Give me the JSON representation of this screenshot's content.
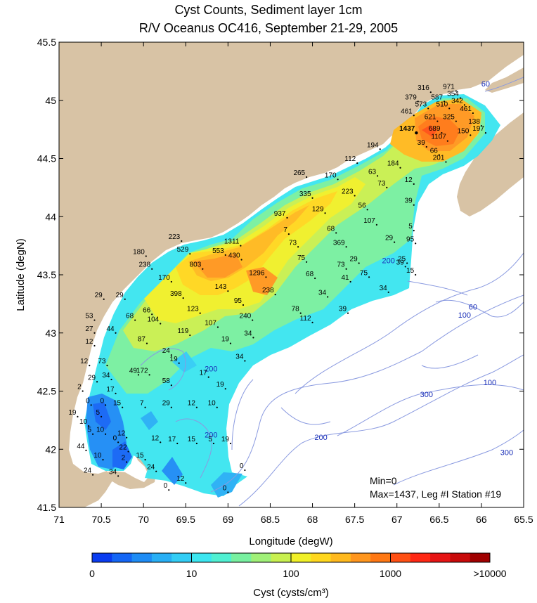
{
  "title": "Cyst Counts, Sediment layer 1cm",
  "subtitle": "R/V Oceanus OC416, September 21-29, 2005",
  "map": {
    "xlabel": "Longitude (degW)",
    "ylabel": "Latitude (degN)",
    "lon_ticks": [
      "71",
      "70.5",
      "70",
      "69.5",
      "69",
      "68.5",
      "68",
      "67.5",
      "67",
      "66.5",
      "66",
      "65.5"
    ],
    "lat_ticks": [
      "41.5",
      "42",
      "42.5",
      "43",
      "43.5",
      "44",
      "44.5",
      "45",
      "45.5"
    ],
    "lon_range": [
      -71,
      -65.5
    ],
    "lat_range": [
      41.5,
      45.5
    ],
    "land_color": "#d8c3a5",
    "water_color": "#ffffff",
    "contour_color": "#8a9ae0",
    "stats_min": "Min=0",
    "stats_max": "Max=1437, Leg #I Station #19",
    "depth_labels": [
      {
        "text": "60",
        "lon": -65.95,
        "lat": 45.12
      },
      {
        "text": "60",
        "lon": -66.1,
        "lat": 43.2
      },
      {
        "text": "100",
        "lon": -66.2,
        "lat": 43.13
      },
      {
        "text": "100",
        "lon": -65.9,
        "lat": 42.55
      },
      {
        "text": "300",
        "lon": -66.65,
        "lat": 42.45
      },
      {
        "text": "300",
        "lon": -65.7,
        "lat": 41.95
      },
      {
        "text": "200",
        "lon": -67.9,
        "lat": 42.08
      },
      {
        "text": "200",
        "lon": -69.2,
        "lat": 42.67
      },
      {
        "text": "200",
        "lon": -69.2,
        "lat": 42.1
      },
      {
        "text": "200",
        "lon": -67.1,
        "lat": 43.6
      }
    ]
  },
  "colorbar": {
    "label": "Cyst (cysts/cm³)",
    "tick_labels": [
      "0",
      "10",
      "100",
      "1000",
      ">10000"
    ],
    "colors": [
      "#0a3cf0",
      "#1466f5",
      "#1e8cf5",
      "#28aff5",
      "#32cdf5",
      "#3ce6f0",
      "#50f0d2",
      "#78f0a0",
      "#a0f078",
      "#c8f050",
      "#f0f028",
      "#ffd71e",
      "#ffb91e",
      "#ff961e",
      "#ff7814",
      "#ff5014",
      "#ff2814",
      "#e61414",
      "#c80a0a",
      "#a00000"
    ]
  },
  "stations": [
    {
      "v": "316",
      "lon": -66.6,
      "lat": 45.07
    },
    {
      "v": "971",
      "lon": -66.3,
      "lat": 45.08
    },
    {
      "v": "354",
      "lon": -66.25,
      "lat": 45.02
    },
    {
      "v": "379",
      "lon": -66.75,
      "lat": 44.99
    },
    {
      "v": "587",
      "lon": -66.44,
      "lat": 44.99
    },
    {
      "v": "342",
      "lon": -66.2,
      "lat": 44.96
    },
    {
      "v": "573",
      "lon": -66.63,
      "lat": 44.93
    },
    {
      "v": "510",
      "lon": -66.38,
      "lat": 44.93
    },
    {
      "v": "461",
      "lon": -66.8,
      "lat": 44.87
    },
    {
      "v": "461",
      "lon": -66.1,
      "lat": 44.89
    },
    {
      "v": "621",
      "lon": -66.52,
      "lat": 44.82
    },
    {
      "v": "325",
      "lon": -66.3,
      "lat": 44.82
    },
    {
      "v": "138",
      "lon": -66.0,
      "lat": 44.78
    },
    {
      "v": "1437",
      "lon": -66.77,
      "lat": 44.72,
      "big": true
    },
    {
      "v": "689",
      "lon": -66.47,
      "lat": 44.72
    },
    {
      "v": "197",
      "lon": -65.95,
      "lat": 44.72
    },
    {
      "v": "150",
      "lon": -66.13,
      "lat": 44.7
    },
    {
      "v": "1107",
      "lon": -66.4,
      "lat": 44.65
    },
    {
      "v": "39",
      "lon": -66.65,
      "lat": 44.6
    },
    {
      "v": "66",
      "lon": -66.5,
      "lat": 44.53
    },
    {
      "v": "201",
      "lon": -66.42,
      "lat": 44.47
    },
    {
      "v": "194",
      "lon": -67.2,
      "lat": 44.58
    },
    {
      "v": "112",
      "lon": -67.47,
      "lat": 44.46
    },
    {
      "v": "184",
      "lon": -66.96,
      "lat": 44.42
    },
    {
      "v": "63",
      "lon": -67.23,
      "lat": 44.35
    },
    {
      "v": "265",
      "lon": -68.07,
      "lat": 44.34
    },
    {
      "v": "170",
      "lon": -67.7,
      "lat": 44.32
    },
    {
      "v": "12",
      "lon": -66.8,
      "lat": 44.28
    },
    {
      "v": "73",
      "lon": -67.12,
      "lat": 44.25
    },
    {
      "v": "223",
      "lon": -67.5,
      "lat": 44.18
    },
    {
      "v": "335",
      "lon": -68.0,
      "lat": 44.16
    },
    {
      "v": "39",
      "lon": -66.8,
      "lat": 44.1
    },
    {
      "v": "56",
      "lon": -67.35,
      "lat": 44.06
    },
    {
      "v": "129",
      "lon": -67.85,
      "lat": 44.03
    },
    {
      "v": "937",
      "lon": -68.3,
      "lat": 43.99
    },
    {
      "v": "107",
      "lon": -67.24,
      "lat": 43.93
    },
    {
      "v": "5",
      "lon": -66.8,
      "lat": 43.88
    },
    {
      "v": "68",
      "lon": -67.72,
      "lat": 43.86
    },
    {
      "v": "7",
      "lon": -68.28,
      "lat": 43.85
    },
    {
      "v": "29",
      "lon": -67.03,
      "lat": 43.78
    },
    {
      "v": "95",
      "lon": -66.78,
      "lat": 43.77
    },
    {
      "v": "223",
      "lon": -69.55,
      "lat": 43.79
    },
    {
      "v": "1311",
      "lon": -68.85,
      "lat": 43.75
    },
    {
      "v": "73",
      "lon": -68.17,
      "lat": 43.74
    },
    {
      "v": "369",
      "lon": -67.6,
      "lat": 43.74
    },
    {
      "v": "529",
      "lon": -69.45,
      "lat": 43.68
    },
    {
      "v": "553",
      "lon": -69.03,
      "lat": 43.67
    },
    {
      "v": "180",
      "lon": -69.97,
      "lat": 43.66
    },
    {
      "v": "430",
      "lon": -68.84,
      "lat": 43.63
    },
    {
      "v": "75",
      "lon": -68.07,
      "lat": 43.61
    },
    {
      "v": "29",
      "lon": -67.45,
      "lat": 43.6
    },
    {
      "v": "25",
      "lon": -66.88,
      "lat": 43.6
    },
    {
      "v": "39",
      "lon": -66.9,
      "lat": 43.57
    },
    {
      "v": "238",
      "lon": -69.9,
      "lat": 43.55
    },
    {
      "v": "803",
      "lon": -69.3,
      "lat": 43.55
    },
    {
      "v": "73",
      "lon": -67.6,
      "lat": 43.55
    },
    {
      "v": "15",
      "lon": -66.78,
      "lat": 43.5
    },
    {
      "v": "1296",
      "lon": -68.55,
      "lat": 43.48
    },
    {
      "v": "68",
      "lon": -67.97,
      "lat": 43.47
    },
    {
      "v": "75",
      "lon": -67.33,
      "lat": 43.48
    },
    {
      "v": "170",
      "lon": -69.67,
      "lat": 43.44
    },
    {
      "v": "41",
      "lon": -67.55,
      "lat": 43.44
    },
    {
      "v": "143",
      "lon": -69.0,
      "lat": 43.36
    },
    {
      "v": "238",
      "lon": -68.44,
      "lat": 43.33
    },
    {
      "v": "34",
      "lon": -67.82,
      "lat": 43.31
    },
    {
      "v": "34",
      "lon": -67.1,
      "lat": 43.35
    },
    {
      "v": "398",
      "lon": -69.53,
      "lat": 43.3
    },
    {
      "v": "29",
      "lon": -70.47,
      "lat": 43.29
    },
    {
      "v": "29",
      "lon": -70.22,
      "lat": 43.29
    },
    {
      "v": "95",
      "lon": -68.82,
      "lat": 43.24
    },
    {
      "v": "66",
      "lon": -69.9,
      "lat": 43.16
    },
    {
      "v": "123",
      "lon": -69.33,
      "lat": 43.17
    },
    {
      "v": "78",
      "lon": -68.14,
      "lat": 43.17
    },
    {
      "v": "39",
      "lon": -67.58,
      "lat": 43.17
    },
    {
      "v": "68",
      "lon": -70.1,
      "lat": 43.11
    },
    {
      "v": "53",
      "lon": -70.58,
      "lat": 43.11
    },
    {
      "v": "104",
      "lon": -69.8,
      "lat": 43.08
    },
    {
      "v": "240",
      "lon": -68.71,
      "lat": 43.11
    },
    {
      "v": "112",
      "lon": -68.0,
      "lat": 43.09
    },
    {
      "v": "107",
      "lon": -69.12,
      "lat": 43.05
    },
    {
      "v": "27",
      "lon": -70.58,
      "lat": 43.0
    },
    {
      "v": "44",
      "lon": -70.33,
      "lat": 43.0
    },
    {
      "v": "119",
      "lon": -69.45,
      "lat": 42.98
    },
    {
      "v": "34",
      "lon": -68.7,
      "lat": 42.96
    },
    {
      "v": "19",
      "lon": -68.97,
      "lat": 42.91
    },
    {
      "v": "87",
      "lon": -69.96,
      "lat": 42.91
    },
    {
      "v": "12",
      "lon": -70.58,
      "lat": 42.89
    },
    {
      "v": "24",
      "lon": -69.67,
      "lat": 42.81
    },
    {
      "v": "19",
      "lon": -69.58,
      "lat": 42.74
    },
    {
      "v": "34",
      "lon": -68.8,
      "lat": 42.76
    },
    {
      "v": "12",
      "lon": -70.64,
      "lat": 42.72
    },
    {
      "v": "73",
      "lon": -70.43,
      "lat": 42.72
    },
    {
      "v": "49",
      "lon": -70.06,
      "lat": 42.64
    },
    {
      "v": "172",
      "lon": -69.93,
      "lat": 42.64
    },
    {
      "v": "17",
      "lon": -69.23,
      "lat": 42.62
    },
    {
      "v": "34",
      "lon": -70.38,
      "lat": 42.6
    },
    {
      "v": "29",
      "lon": -70.55,
      "lat": 42.58
    },
    {
      "v": "58",
      "lon": -69.67,
      "lat": 42.55
    },
    {
      "v": "19",
      "lon": -69.03,
      "lat": 42.52
    },
    {
      "v": "2",
      "lon": -70.72,
      "lat": 42.5
    },
    {
      "v": "17",
      "lon": -70.33,
      "lat": 42.48
    },
    {
      "v": "0",
      "lon": -70.62,
      "lat": 42.38
    },
    {
      "v": "0",
      "lon": -70.45,
      "lat": 42.38
    },
    {
      "v": "15",
      "lon": -70.25,
      "lat": 42.36
    },
    {
      "v": "7",
      "lon": -69.98,
      "lat": 42.36
    },
    {
      "v": "29",
      "lon": -69.67,
      "lat": 42.36
    },
    {
      "v": "12",
      "lon": -69.37,
      "lat": 42.36
    },
    {
      "v": "10",
      "lon": -69.13,
      "lat": 42.36
    },
    {
      "v": "19",
      "lon": -70.78,
      "lat": 42.28
    },
    {
      "v": "5",
      "lon": -70.5,
      "lat": 42.28
    },
    {
      "v": "10",
      "lon": -70.65,
      "lat": 42.2
    },
    {
      "v": "5",
      "lon": -70.6,
      "lat": 42.13
    },
    {
      "v": "10",
      "lon": -70.45,
      "lat": 42.13
    },
    {
      "v": "12",
      "lon": -70.2,
      "lat": 42.1
    },
    {
      "v": "0",
      "lon": -70.3,
      "lat": 42.06
    },
    {
      "v": "12",
      "lon": -69.8,
      "lat": 42.06
    },
    {
      "v": "17",
      "lon": -69.6,
      "lat": 42.05
    },
    {
      "v": "15",
      "lon": -69.37,
      "lat": 42.05
    },
    {
      "v": "5",
      "lon": -69.17,
      "lat": 42.05
    },
    {
      "v": "19",
      "lon": -68.97,
      "lat": 42.05
    },
    {
      "v": "44",
      "lon": -70.68,
      "lat": 41.99
    },
    {
      "v": "22",
      "lon": -70.18,
      "lat": 41.98
    },
    {
      "v": "15",
      "lon": -69.98,
      "lat": 41.91
    },
    {
      "v": "10",
      "lon": -70.48,
      "lat": 41.91
    },
    {
      "v": "2",
      "lon": -70.2,
      "lat": 41.89
    },
    {
      "v": "24",
      "lon": -69.85,
      "lat": 41.81
    },
    {
      "v": "24",
      "lon": -70.6,
      "lat": 41.78
    },
    {
      "v": "34",
      "lon": -70.3,
      "lat": 41.77
    },
    {
      "v": "0",
      "lon": -68.8,
      "lat": 41.82
    },
    {
      "v": "12",
      "lon": -69.5,
      "lat": 41.71
    },
    {
      "v": "0",
      "lon": -69.7,
      "lat": 41.65
    },
    {
      "v": "0",
      "lon": -69.0,
      "lat": 41.63
    }
  ]
}
